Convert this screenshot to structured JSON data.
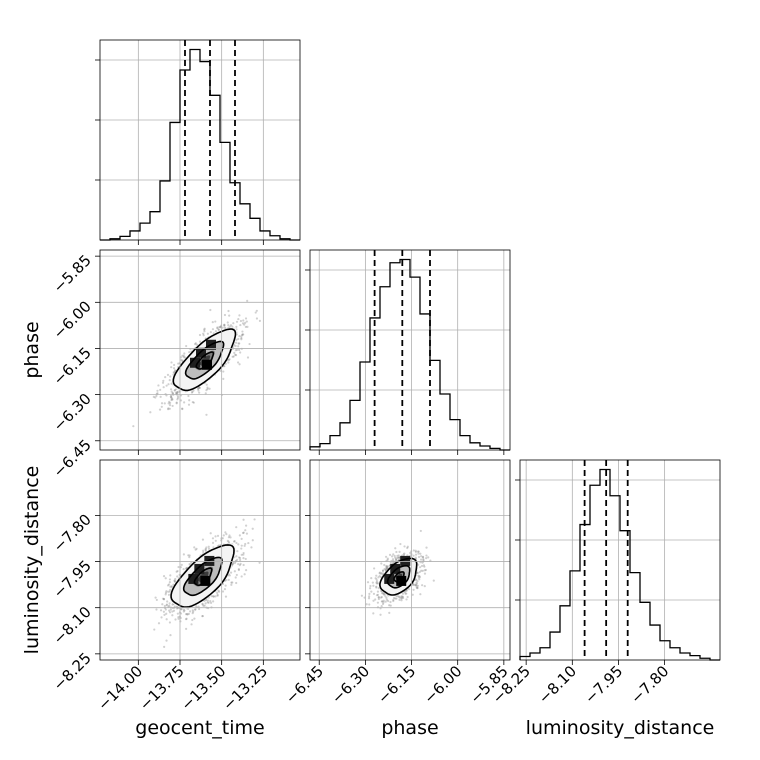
{
  "chart_data": {
    "type": "corner",
    "grid": true,
    "parameters": [
      {
        "name": "geocent_time",
        "label": "geocent_time",
        "ticks": [
          -14.0,
          -13.75,
          -13.5,
          -13.25
        ],
        "tick_labels": [
          "−14.00",
          "−13.75",
          "−13.50",
          "−13.25"
        ],
        "range": [
          -14.23,
          -13.03
        ],
        "quantiles": [
          -13.72,
          -13.57,
          -13.42
        ],
        "histogram": {
          "bin_edges": [
            -14.23,
            -14.17,
            -14.11,
            -14.05,
            -13.99,
            -13.93,
            -13.87,
            -13.81,
            -13.75,
            -13.69,
            -13.63,
            -13.57,
            -13.51,
            -13.45,
            -13.39,
            -13.33,
            -13.27,
            -13.21,
            -13.15,
            -13.09,
            -13.03
          ],
          "counts": [
            0,
            2,
            6,
            15,
            28,
            47,
            98,
            195,
            282,
            316,
            296,
            240,
            162,
            95,
            60,
            36,
            15,
            7,
            2,
            0
          ]
        }
      },
      {
        "name": "phase",
        "label": "phase",
        "ticks": [
          -6.45,
          -6.3,
          -6.15,
          -6.0,
          -5.85
        ],
        "tick_labels": [
          "−6.45",
          "−6.30",
          "−6.15",
          "−6.00",
          "−5.85"
        ],
        "range": [
          -6.48,
          -5.83
        ],
        "quantiles": [
          -6.27,
          -6.18,
          -6.09
        ],
        "histogram": {
          "bin_edges": [
            -6.48,
            -6.4475,
            -6.415,
            -6.3825,
            -6.35,
            -6.3175,
            -6.285,
            -6.2525,
            -6.22,
            -6.1875,
            -6.155,
            -6.1225,
            -6.09,
            -6.0575,
            -6.025,
            -5.9925,
            -5.96,
            -5.9275,
            -5.895,
            -5.8625,
            -5.83
          ],
          "counts": [
            4,
            8,
            18,
            34,
            62,
            110,
            165,
            204,
            234,
            238,
            216,
            170,
            112,
            70,
            38,
            18,
            9,
            5,
            2,
            0
          ]
        }
      },
      {
        "name": "luminosity_distance",
        "label": "luminosity_distance",
        "ticks": [
          -8.25,
          -8.1,
          -7.95,
          -7.8
        ],
        "tick_labels": [
          "−8.25",
          "−8.10",
          "−7.95",
          "−7.80"
        ],
        "range": [
          -8.27,
          -7.62
        ],
        "quantiles": [
          -8.06,
          -7.99,
          -7.92
        ],
        "histogram": {
          "bin_edges": [
            -8.27,
            -8.2375,
            -8.205,
            -8.1725,
            -8.14,
            -8.1075,
            -8.075,
            -8.0425,
            -8.01,
            -7.9775,
            -7.945,
            -7.9125,
            -7.88,
            -7.8475,
            -7.815,
            -7.7825,
            -7.75,
            -7.7175,
            -7.685,
            -7.6525,
            -7.62
          ],
          "counts": [
            4,
            8,
            14,
            32,
            62,
            102,
            155,
            200,
            218,
            188,
            148,
            100,
            66,
            40,
            22,
            14,
            8,
            5,
            2,
            0
          ]
        }
      }
    ],
    "pairs": [
      {
        "x": "geocent_time",
        "y": "phase",
        "peak": [
          -13.6,
          -6.19
        ],
        "levels": [
          {
            "a": 0.055,
            "b": 0.022
          },
          {
            "a": 0.122,
            "b": 0.048
          },
          {
            "a": 0.2,
            "b": 0.078
          }
        ]
      },
      {
        "x": "geocent_time",
        "y": "luminosity_distance",
        "peak": [
          -13.61,
          -8.0
        ],
        "levels": [
          {
            "a": 0.055,
            "b": 0.024
          },
          {
            "a": 0.122,
            "b": 0.052
          },
          {
            "a": 0.2,
            "b": 0.086
          }
        ]
      },
      {
        "x": "phase",
        "y": "luminosity_distance",
        "peak": [
          -6.19,
          -8.0
        ],
        "levels": [
          {
            "a": 0.03,
            "b": 0.018
          },
          {
            "a": 0.066,
            "b": 0.04
          },
          {
            "a": 0.11,
            "b": 0.066
          }
        ]
      }
    ]
  }
}
